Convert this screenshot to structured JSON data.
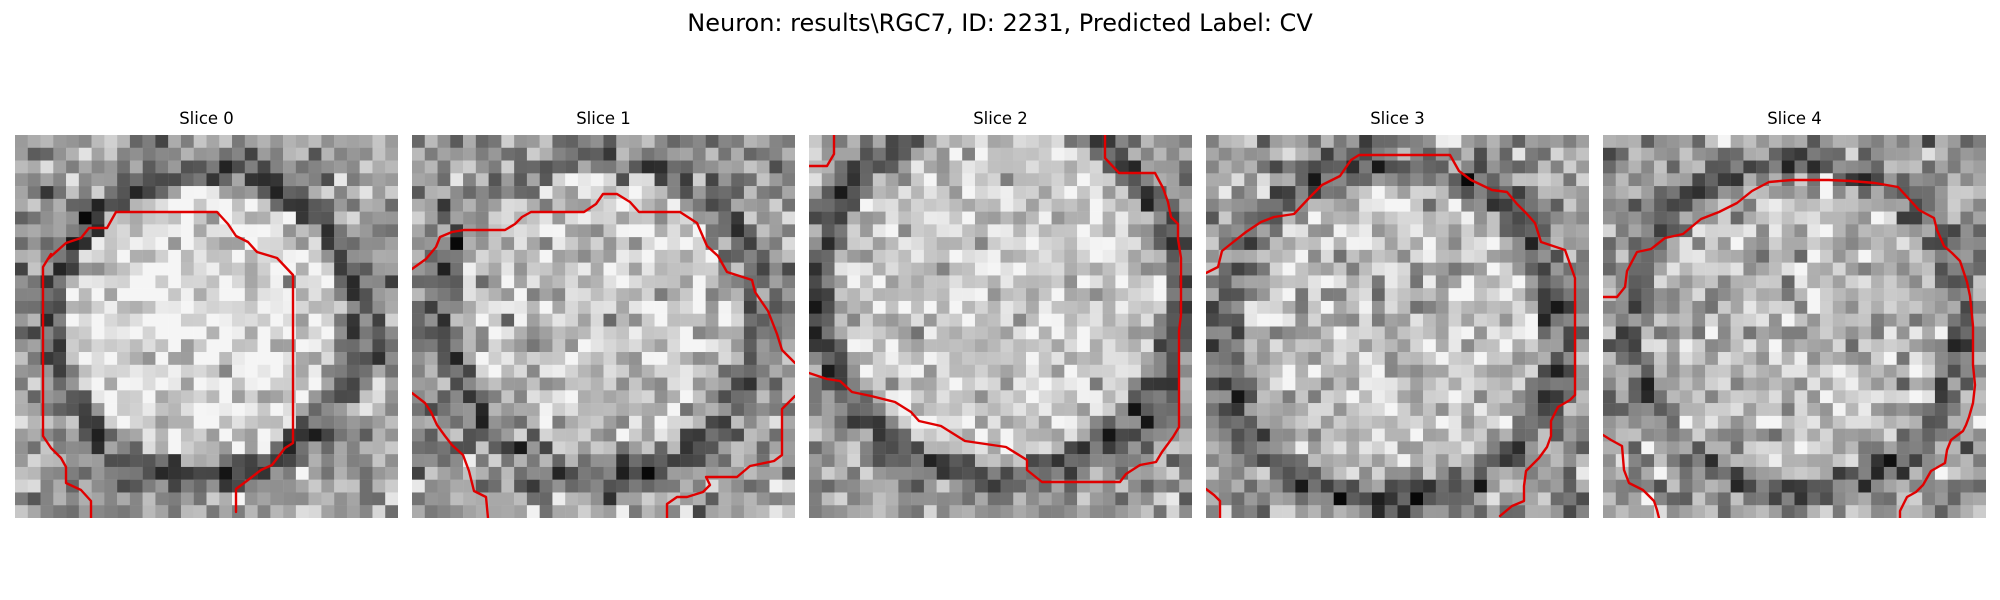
{
  "figure": {
    "title": "Neuron: results\\RGC7, ID: 2231, Predicted Label: CV"
  },
  "panels": [
    {
      "title": "Slice 0"
    },
    {
      "title": "Slice 1"
    },
    {
      "title": "Slice 2"
    },
    {
      "title": "Slice 3"
    },
    {
      "title": "Slice 4"
    }
  ],
  "colors": {
    "background": "#ffffff",
    "contour": "#e00000",
    "colormap": "grayscale"
  }
}
